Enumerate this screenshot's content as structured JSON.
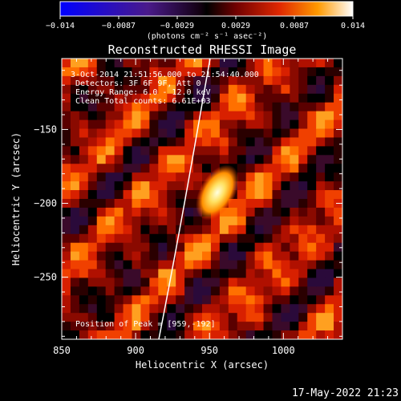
{
  "colorbar": {
    "ticks": [
      "−0.014",
      "−0.0087",
      "−0.0029",
      "0.0029",
      "0.0087",
      "0.014"
    ],
    "unit_label": "(photons cm⁻² s⁻¹ asec⁻²)"
  },
  "image_title": "Reconstructed RHESSI Image",
  "overlay_text": {
    "time_range": "3-Oct-2014 21:51:56.000 to 21:54:40.000",
    "detectors": "Detectors: 3F 6F 9F, Att 0",
    "energy_range": "Energy Range: 6.0 - 12.0 keV",
    "clean_counts": "Clean    Total counts: 6.61E+03",
    "peak_position": "Position of Peak = [959,-192]"
  },
  "x_axis": {
    "title": "Heliocentric X (arcsec)",
    "tick_labels": [
      "850",
      "900",
      "950",
      "1000"
    ],
    "tick_values": [
      850,
      900,
      950,
      1000
    ],
    "range": [
      850,
      1040
    ]
  },
  "y_axis": {
    "title": "Heliocentric Y (arcsec)",
    "tick_labels": [
      "−150",
      "−200",
      "−250"
    ],
    "tick_values": [
      -150,
      -200,
      -250
    ],
    "range": [
      -292,
      -102
    ]
  },
  "peak": {
    "x": 959,
    "y": -192
  },
  "footer_timestamp": "17-May-2022 21:23",
  "colors": {
    "colormap": [
      "#0000ff",
      "#6a1fa8",
      "#1a001f",
      "#000000",
      "#7a0000",
      "#e02000",
      "#ff8000",
      "#ffd000",
      "#ffffff"
    ]
  }
}
